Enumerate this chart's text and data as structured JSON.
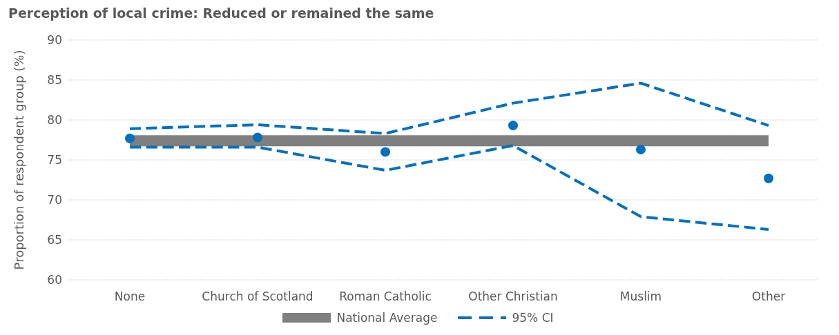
{
  "chart_data": {
    "type": "line",
    "title": "Perception of local crime: Reduced or remained the same",
    "ylabel": "Proportion of respondent group (%)",
    "categories": [
      "None",
      "Church of Scotland",
      "Roman Catholic",
      "Other Christian",
      "Muslim",
      "Other"
    ],
    "series": [
      {
        "name": "National Average",
        "color": "#7f7f7f",
        "line_style": "solid",
        "marker": "none",
        "values": [
          77.4,
          77.4,
          77.4,
          77.4,
          77.4,
          77.4
        ]
      },
      {
        "name": "95% CI",
        "color": "#0070c0",
        "line_style": "dashed",
        "marker": "none",
        "values": [
          78.9,
          79.4,
          78.3,
          82.1,
          84.6,
          79.3
        ]
      },
      {
        "color": "#0070c0",
        "line_style": "dashed",
        "marker": "none",
        "values": [
          76.6,
          76.6,
          73.7,
          76.8,
          67.9,
          66.3
        ]
      },
      {
        "type": "scatter",
        "color": "#0070c0",
        "marker": "circle",
        "values": [
          77.7,
          77.8,
          76.0,
          79.3,
          76.3,
          72.7
        ]
      }
    ],
    "ylim": [
      60,
      90
    ],
    "yticks": [
      60,
      65,
      70,
      75,
      80,
      85,
      90
    ],
    "grid": "y",
    "legend": "bottom"
  }
}
